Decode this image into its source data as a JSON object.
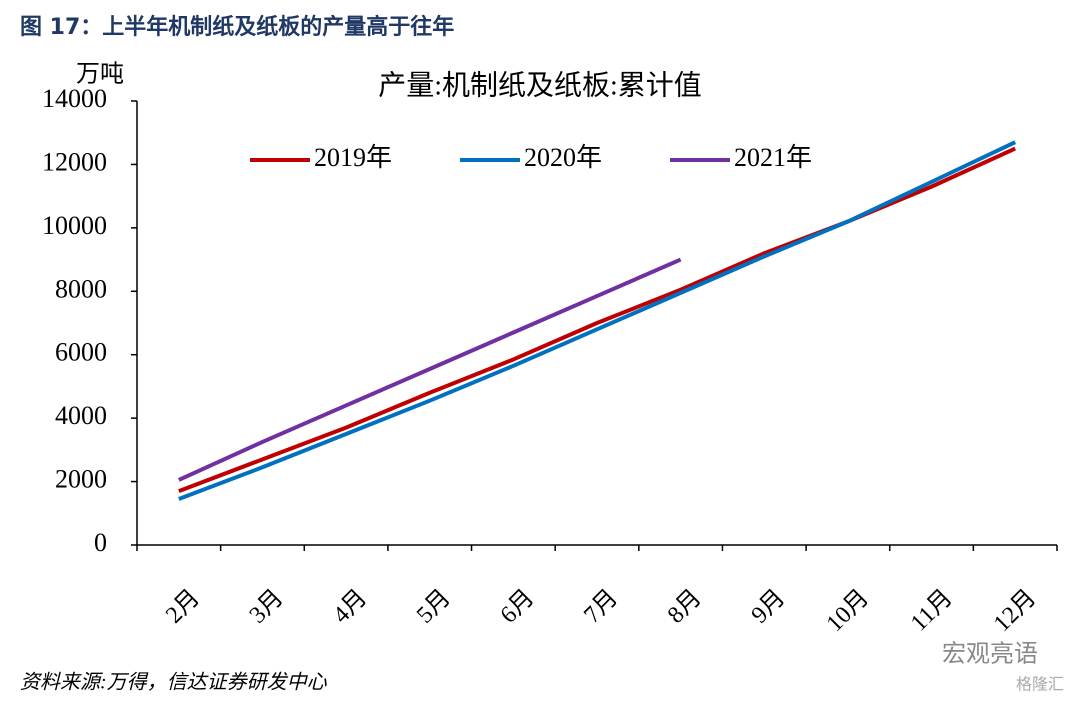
{
  "header": {
    "title": "图 17：上半年机制纸及纸板的产量高于往年"
  },
  "chart_data": {
    "type": "line",
    "title": "产量:机制纸及纸板:累计值",
    "y_label": "万吨",
    "categories": [
      "2月",
      "3月",
      "4月",
      "5月",
      "6月",
      "7月",
      "8月",
      "9月",
      "10月",
      "11月",
      "12月"
    ],
    "series": [
      {
        "name": "2019年",
        "color": "#c00000",
        "values": [
          1700,
          2700,
          3700,
          4800,
          5850,
          7000,
          8050,
          9200,
          10200,
          11300,
          12500
        ]
      },
      {
        "name": "2020年",
        "color": "#0070c0",
        "values": [
          1450,
          2450,
          3500,
          4550,
          5650,
          6800,
          7950,
          9100,
          10200,
          11450,
          12700
        ]
      },
      {
        "name": "2021年",
        "color": "#7030a0",
        "values": [
          2050,
          3250,
          4400,
          5550,
          6700,
          7850,
          9000,
          null,
          null,
          null,
          null
        ]
      }
    ],
    "ylim": [
      0,
      14000
    ],
    "yticks": [
      0,
      2000,
      4000,
      6000,
      8000,
      10000,
      12000,
      14000
    ],
    "legend": "top"
  },
  "footer": {
    "source": "资料来源:万得，信达证券研发中心",
    "watermark": "宏观亮语",
    "logo": "格隆汇"
  }
}
